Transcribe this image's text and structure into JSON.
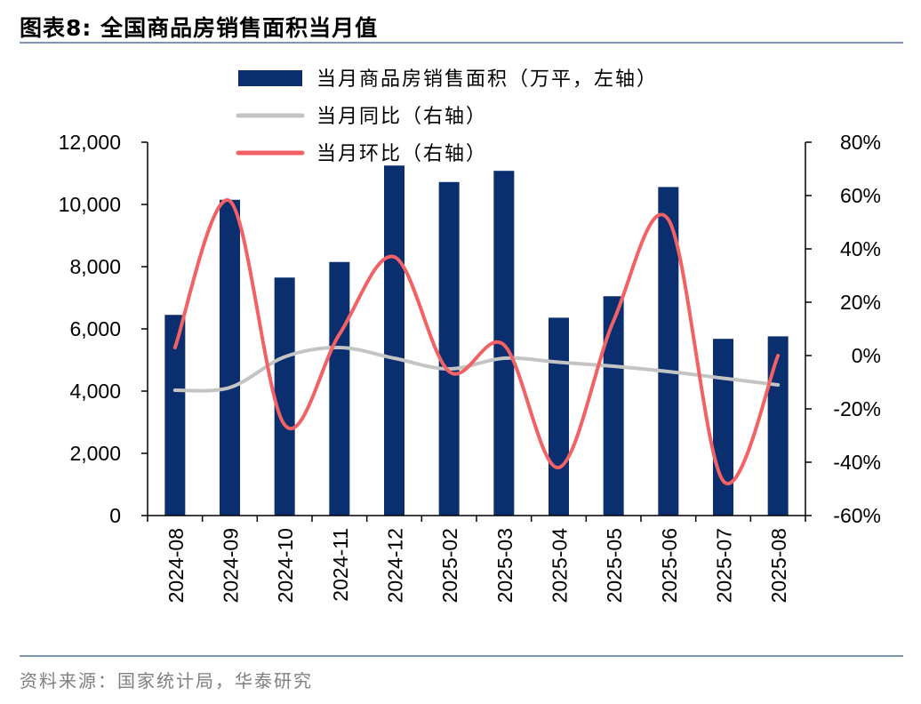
{
  "header": {
    "title": "图表8:  全国商品房销售面积当月值"
  },
  "footer": {
    "source": "资料来源：国家统计局，华泰研究"
  },
  "chart_data": {
    "type": "bar",
    "title": "全国商品房销售面积当月值",
    "categories": [
      "2024-08",
      "2024-09",
      "2024-10",
      "2024-11",
      "2024-12",
      "2025-02",
      "2025-03",
      "2025-04",
      "2025-05",
      "2025-06",
      "2025-07",
      "2025-08"
    ],
    "bar_series": {
      "name": "当月商品房销售面积（万平，左轴）",
      "color": "#0a2e6e",
      "values": [
        6450,
        10150,
        7650,
        8150,
        11250,
        10720,
        11080,
        6360,
        7050,
        10560,
        5680,
        5760
      ]
    },
    "line_series": [
      {
        "name": "当月同比（右轴）",
        "color": "#c4c4c4",
        "values": [
          -13,
          -12,
          -0.5,
          3,
          -1,
          -5,
          -1,
          -2.5,
          -4,
          -6,
          -8.5,
          -11
        ]
      },
      {
        "name": "当月环比（右轴）",
        "color": "#f26164",
        "values": [
          3,
          58,
          -26,
          8,
          37,
          -6,
          4,
          -42,
          13,
          51,
          -47,
          0
        ]
      }
    ],
    "y_left": {
      "min": 0,
      "max": 12000,
      "ticks": [
        0,
        2000,
        4000,
        6000,
        8000,
        10000,
        12000
      ],
      "tick_labels": [
        "0",
        "2,000",
        "4,000",
        "6,000",
        "8,000",
        "10,000",
        "12,000"
      ]
    },
    "y_right": {
      "min": -60,
      "max": 80,
      "ticks": [
        -60,
        -40,
        -20,
        0,
        20,
        40,
        60,
        80
      ],
      "tick_labels": [
        "-60%",
        "-40%",
        "-20%",
        "0%",
        "20%",
        "40%",
        "60%",
        "80%"
      ]
    },
    "grid": false,
    "legend_position": "top-center"
  }
}
